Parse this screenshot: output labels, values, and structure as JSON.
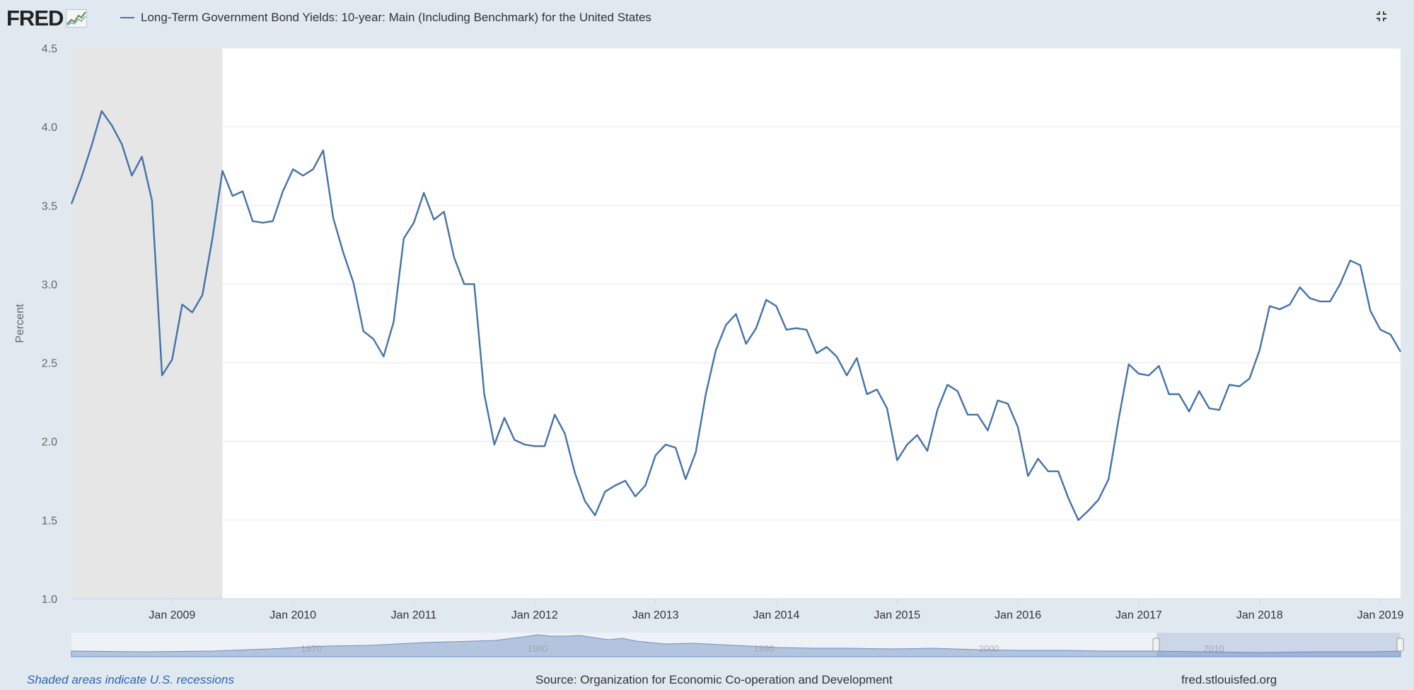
{
  "header": {
    "logo_text": "FRED",
    "legend_label": "Long-Term Government Bond Yields: 10-year: Main (Including Benchmark) for the United States"
  },
  "footer": {
    "recession_note": "Shaded areas indicate U.S. recessions",
    "source": "Source: Organization for Economic Co-operation and Development",
    "site": "fred.stlouisfed.org"
  },
  "icons": {
    "collapse": "collapse-icon",
    "logo_graph": "line-graph-icon"
  },
  "colors": {
    "series": "#4572a7",
    "recession": "#e6e6e6",
    "background": "#e1e9f0",
    "navigator": "#6b8fc0"
  },
  "chart_data": {
    "type": "line",
    "title": "Long-Term Government Bond Yields: 10-year: Main (Including Benchmark) for the United States",
    "ylabel": "Percent",
    "xlabel": "",
    "ylim": [
      1.0,
      4.5
    ],
    "yticks": [
      "1.0",
      "1.5",
      "2.0",
      "2.5",
      "3.0",
      "3.5",
      "4.0",
      "4.5"
    ],
    "xlim": [
      "2008-03",
      "2019-03"
    ],
    "xticks": [
      {
        "label": "Jan 2009",
        "date": "2009-01"
      },
      {
        "label": "Jan 2010",
        "date": "2010-01"
      },
      {
        "label": "Jan 2011",
        "date": "2011-01"
      },
      {
        "label": "Jan 2012",
        "date": "2012-01"
      },
      {
        "label": "Jan 2013",
        "date": "2013-01"
      },
      {
        "label": "Jan 2014",
        "date": "2014-01"
      },
      {
        "label": "Jan 2015",
        "date": "2015-01"
      },
      {
        "label": "Jan 2016",
        "date": "2016-01"
      },
      {
        "label": "Jan 2017",
        "date": "2017-01"
      },
      {
        "label": "Jan 2018",
        "date": "2018-01"
      },
      {
        "label": "Jan 2019",
        "date": "2019-01"
      }
    ],
    "recessions": [
      {
        "start": "2008-03",
        "end": "2009-06"
      }
    ],
    "grid": true,
    "legend": "top-left",
    "series": [
      {
        "name": "Long-Term Government Bond Yields: 10-year: Main (Including Benchmark) for the United States",
        "x": [
          "2008-03",
          "2008-04",
          "2008-05",
          "2008-06",
          "2008-07",
          "2008-08",
          "2008-09",
          "2008-10",
          "2008-11",
          "2008-12",
          "2009-01",
          "2009-02",
          "2009-03",
          "2009-04",
          "2009-05",
          "2009-06",
          "2009-07",
          "2009-08",
          "2009-09",
          "2009-10",
          "2009-11",
          "2009-12",
          "2010-01",
          "2010-02",
          "2010-03",
          "2010-04",
          "2010-05",
          "2010-06",
          "2010-07",
          "2010-08",
          "2010-09",
          "2010-10",
          "2010-11",
          "2010-12",
          "2011-01",
          "2011-02",
          "2011-03",
          "2011-04",
          "2011-05",
          "2011-06",
          "2011-07",
          "2011-08",
          "2011-09",
          "2011-10",
          "2011-11",
          "2011-12",
          "2012-01",
          "2012-02",
          "2012-03",
          "2012-04",
          "2012-05",
          "2012-06",
          "2012-07",
          "2012-08",
          "2012-09",
          "2012-10",
          "2012-11",
          "2012-12",
          "2013-01",
          "2013-02",
          "2013-03",
          "2013-04",
          "2013-05",
          "2013-06",
          "2013-07",
          "2013-08",
          "2013-09",
          "2013-10",
          "2013-11",
          "2013-12",
          "2014-01",
          "2014-02",
          "2014-03",
          "2014-04",
          "2014-05",
          "2014-06",
          "2014-07",
          "2014-08",
          "2014-09",
          "2014-10",
          "2014-11",
          "2014-12",
          "2015-01",
          "2015-02",
          "2015-03",
          "2015-04",
          "2015-05",
          "2015-06",
          "2015-07",
          "2015-08",
          "2015-09",
          "2015-10",
          "2015-11",
          "2015-12",
          "2016-01",
          "2016-02",
          "2016-03",
          "2016-04",
          "2016-05",
          "2016-06",
          "2016-07",
          "2016-08",
          "2016-09",
          "2016-10",
          "2016-11",
          "2016-12",
          "2017-01",
          "2017-02",
          "2017-03",
          "2017-04",
          "2017-05",
          "2017-06",
          "2017-07",
          "2017-08",
          "2017-09",
          "2017-10",
          "2017-11",
          "2017-12",
          "2018-01",
          "2018-02",
          "2018-03",
          "2018-04",
          "2018-05",
          "2018-06",
          "2018-07",
          "2018-08",
          "2018-09",
          "2018-10",
          "2018-11",
          "2018-12",
          "2019-01",
          "2019-02",
          "2019-03"
        ],
        "values": [
          3.51,
          3.68,
          3.88,
          4.1,
          4.01,
          3.89,
          3.69,
          3.81,
          3.53,
          2.42,
          2.52,
          2.87,
          2.82,
          2.93,
          3.29,
          3.72,
          3.56,
          3.59,
          3.4,
          3.39,
          3.4,
          3.59,
          3.73,
          3.69,
          3.73,
          3.85,
          3.42,
          3.2,
          3.01,
          2.7,
          2.65,
          2.54,
          2.76,
          3.29,
          3.39,
          3.58,
          3.41,
          3.46,
          3.17,
          3.0,
          3.0,
          2.3,
          1.98,
          2.15,
          2.01,
          1.98,
          1.97,
          1.97,
          2.17,
          2.05,
          1.8,
          1.62,
          1.53,
          1.68,
          1.72,
          1.75,
          1.65,
          1.72,
          1.91,
          1.98,
          1.96,
          1.76,
          1.93,
          2.3,
          2.58,
          2.74,
          2.81,
          2.62,
          2.72,
          2.9,
          2.86,
          2.71,
          2.72,
          2.71,
          2.56,
          2.6,
          2.54,
          2.42,
          2.53,
          2.3,
          2.33,
          2.21,
          1.88,
          1.98,
          2.04,
          1.94,
          2.2,
          2.36,
          2.32,
          2.17,
          2.17,
          2.07,
          2.26,
          2.24,
          2.09,
          1.78,
          1.89,
          1.81,
          1.81,
          1.64,
          1.5,
          1.56,
          1.63,
          1.76,
          2.14,
          2.49,
          2.43,
          2.42,
          2.48,
          2.3,
          2.3,
          2.19,
          2.32,
          2.21,
          2.2,
          2.36,
          2.35,
          2.4,
          2.58,
          2.86,
          2.84,
          2.87,
          2.98,
          2.91,
          2.89,
          2.89,
          3.0,
          3.15,
          3.12,
          2.83,
          2.71,
          2.68,
          2.57
        ]
      }
    ],
    "navigator": {
      "range_labels": [
        "1970",
        "1980",
        "1990",
        "2000",
        "2010"
      ]
    }
  }
}
